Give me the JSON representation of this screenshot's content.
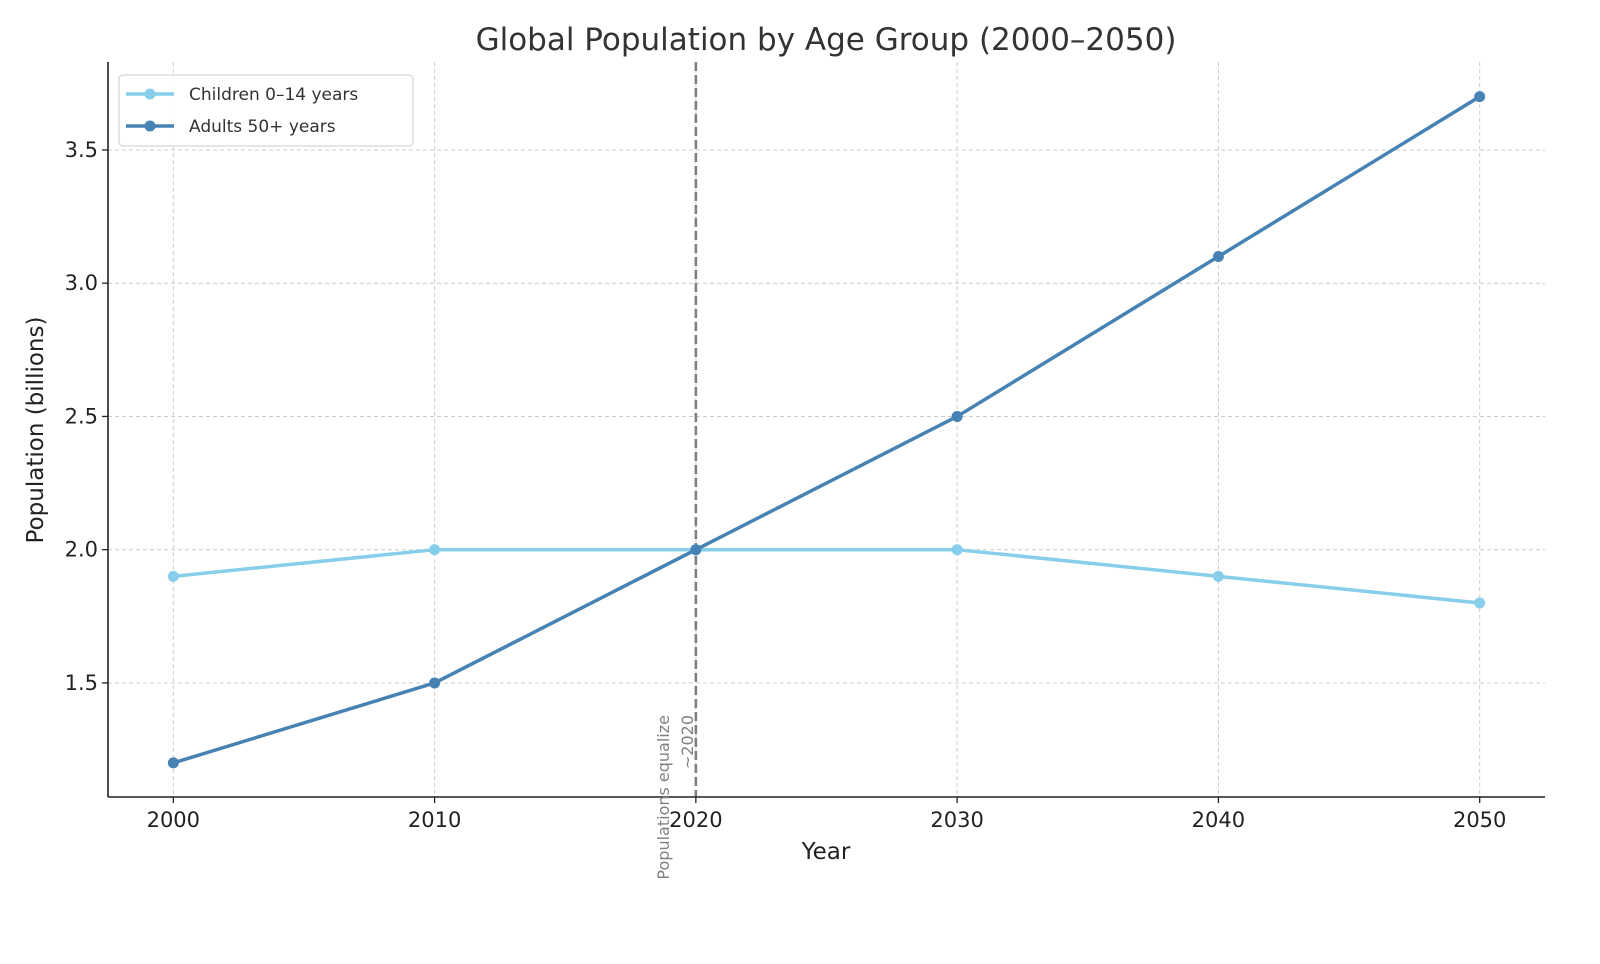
{
  "chart_data": {
    "type": "line",
    "title": "Global Population by Age Group (2000–2050)",
    "xlabel": "Year",
    "ylabel": "Population (billions)",
    "x": [
      2000,
      2010,
      2020,
      2030,
      2040,
      2050
    ],
    "xticks": [
      "2000",
      "2010",
      "2020",
      "2030",
      "2040",
      "2050"
    ],
    "yticks": [
      "1.5",
      "2.0",
      "2.5",
      "3.0",
      "3.5"
    ],
    "ytick_values": [
      1.5,
      2.0,
      2.5,
      3.0,
      3.5
    ],
    "xlim": [
      1997.5,
      2052.5
    ],
    "ylim": [
      1.072,
      3.83
    ],
    "grid": true,
    "legend_position": "top-left",
    "series": [
      {
        "name": "Children 0–14 years",
        "color": "#87CEEB",
        "values": [
          1.9,
          2.0,
          2.0,
          2.0,
          1.9,
          1.8
        ]
      },
      {
        "name": "Adults 50+ years",
        "color": "#4682B4",
        "values": [
          1.2,
          1.5,
          2.0,
          2.5,
          3.1,
          3.7
        ]
      }
    ],
    "annotation": {
      "x": 2020,
      "line1": "Populations equalize",
      "line2": "~2020",
      "color": "#808080"
    }
  }
}
